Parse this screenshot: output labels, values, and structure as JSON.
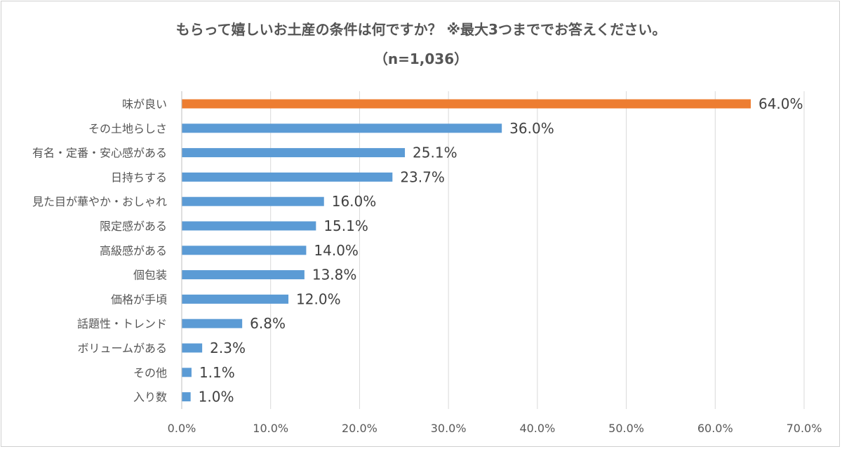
{
  "chart_data": {
    "type": "bar",
    "orientation": "horizontal",
    "title": "もらって嬉しいお土産の条件は何ですか？ ※最大3つまででお答えください。",
    "subtitle": "（n=1,036）",
    "categories": [
      "味が良い",
      "その土地らしさ",
      "有名・定番・安心感がある",
      "日持ちする",
      "見た目が華やか・おしゃれ",
      "限定感がある",
      "高級感がある",
      "個包装",
      "価格が手頃",
      "話題性・トレンド",
      "ボリュームがある",
      "その他",
      "入り数"
    ],
    "values": [
      64.0,
      36.0,
      25.1,
      23.7,
      16.0,
      15.1,
      14.0,
      13.8,
      12.0,
      6.8,
      2.3,
      1.1,
      1.0
    ],
    "value_labels": [
      "64.0%",
      "36.0%",
      "25.1%",
      "23.7%",
      "16.0%",
      "15.1%",
      "14.0%",
      "13.8%",
      "12.0%",
      "6.8%",
      "2.3%",
      "1.1%",
      "1.0%"
    ],
    "xlim": [
      0,
      70
    ],
    "ticks": [
      0,
      10,
      20,
      30,
      40,
      50,
      60,
      70
    ],
    "tick_labels": [
      "0.0%",
      "10.0%",
      "20.0%",
      "30.0%",
      "40.0%",
      "50.0%",
      "60.0%",
      "70.0%"
    ],
    "grid": true,
    "legend": "none",
    "colors": {
      "highlight": "#ED7D31",
      "bar": "#5B9BD5",
      "grid": "#D9D9D9"
    },
    "highlight_index": 0
  }
}
